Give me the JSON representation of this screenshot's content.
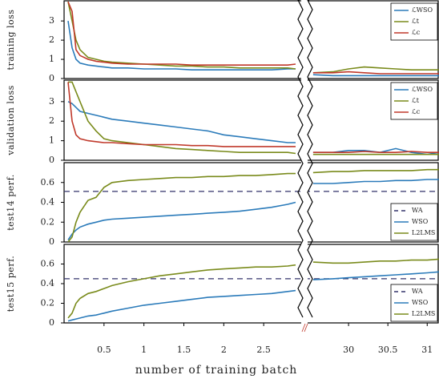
{
  "chart_data": {
    "type": "line-panels",
    "xlabel": "number of training batch",
    "x_segments": [
      {
        "xlim": [
          0,
          2.95
        ],
        "xticks": [
          0.5,
          1,
          1.5,
          2,
          2.5
        ]
      },
      {
        "xlim": [
          29.5,
          31.15
        ],
        "xticks": [
          30,
          30.5,
          31
        ]
      }
    ],
    "x": [
      0.05,
      0.1,
      0.15,
      0.2,
      0.3,
      0.4,
      0.5,
      0.6,
      0.8,
      1.0,
      1.2,
      1.4,
      1.6,
      1.8,
      2.0,
      2.2,
      2.4,
      2.6,
      2.8,
      2.9,
      29.55,
      29.8,
      30.0,
      30.2,
      30.4,
      30.6,
      30.8,
      31.0,
      31.15
    ],
    "panels": [
      {
        "ylabel": "training loss",
        "ylim": [
          0,
          4.05
        ],
        "yticks": [
          0,
          1,
          2,
          3
        ],
        "legend": "upper right",
        "series": [
          {
            "name": "ℒWSO",
            "color": "#2b7bba",
            "values": [
              3.0,
              1.6,
              1.0,
              0.8,
              0.7,
              0.65,
              0.6,
              0.55,
              0.55,
              0.5,
              0.5,
              0.5,
              0.45,
              0.45,
              0.45,
              0.45,
              0.45,
              0.45,
              0.5,
              0.5,
              0.2,
              0.15,
              0.15,
              0.15,
              0.15,
              0.15,
              0.15,
              0.15,
              0.15
            ]
          },
          {
            "name": "ℒt",
            "color": "#7a8b1c",
            "values": [
              4.0,
              3.0,
              2.0,
              1.5,
              1.1,
              1.0,
              0.9,
              0.85,
              0.8,
              0.75,
              0.7,
              0.65,
              0.65,
              0.6,
              0.6,
              0.55,
              0.55,
              0.55,
              0.55,
              0.5,
              0.3,
              0.35,
              0.5,
              0.6,
              0.55,
              0.5,
              0.45,
              0.45,
              0.45
            ]
          },
          {
            "name": "ℒc",
            "color": "#c0392b",
            "values": [
              4.0,
              3.5,
              1.5,
              1.2,
              1.0,
              0.9,
              0.85,
              0.8,
              0.75,
              0.75,
              0.75,
              0.75,
              0.7,
              0.7,
              0.7,
              0.7,
              0.7,
              0.7,
              0.7,
              0.75,
              0.3,
              0.3,
              0.35,
              0.3,
              0.25,
              0.25,
              0.25,
              0.25,
              0.25
            ]
          }
        ]
      },
      {
        "ylabel": "validation loss",
        "ylim": [
          0,
          4.1
        ],
        "yticks": [
          0,
          1,
          2,
          3
        ],
        "legend": "upper right",
        "series": [
          {
            "name": "ℒWSO",
            "color": "#2b7bba",
            "values": [
              3.0,
              2.9,
              2.7,
              2.5,
              2.4,
              2.3,
              2.2,
              2.1,
              2.0,
              1.9,
              1.8,
              1.7,
              1.6,
              1.5,
              1.3,
              1.2,
              1.1,
              1.0,
              0.9,
              0.9,
              0.4,
              0.4,
              0.5,
              0.5,
              0.4,
              0.6,
              0.4,
              0.3,
              0.4
            ]
          },
          {
            "name": "ℒt",
            "color": "#7a8b1c",
            "values": [
              4.0,
              4.0,
              3.5,
              3.0,
              2.0,
              1.5,
              1.1,
              1.0,
              0.9,
              0.8,
              0.7,
              0.6,
              0.55,
              0.5,
              0.45,
              0.4,
              0.4,
              0.4,
              0.4,
              0.35,
              0.3,
              0.3,
              0.3,
              0.3,
              0.3,
              0.3,
              0.3,
              0.3,
              0.3
            ]
          },
          {
            "name": "ℒc",
            "color": "#c0392b",
            "values": [
              4.0,
              2.0,
              1.3,
              1.1,
              1.0,
              0.95,
              0.9,
              0.9,
              0.85,
              0.8,
              0.8,
              0.8,
              0.75,
              0.75,
              0.7,
              0.7,
              0.7,
              0.7,
              0.7,
              0.7,
              0.4,
              0.4,
              0.4,
              0.45,
              0.4,
              0.4,
              0.45,
              0.4,
              0.4
            ]
          }
        ]
      },
      {
        "ylabel": "test14 perf.",
        "ylim": [
          0,
          0.8
        ],
        "yticks": [
          0,
          0.2,
          0.4,
          0.6
        ],
        "legend": "lower right",
        "reference_lines": [
          {
            "name": "WA",
            "value": 0.51,
            "color": "#33336b"
          }
        ],
        "series": [
          {
            "name": "WSO",
            "color": "#2b7bba",
            "values": [
              0.02,
              0.08,
              0.12,
              0.15,
              0.18,
              0.2,
              0.22,
              0.23,
              0.24,
              0.25,
              0.26,
              0.27,
              0.28,
              0.29,
              0.3,
              0.31,
              0.33,
              0.35,
              0.38,
              0.4,
              0.59,
              0.59,
              0.6,
              0.61,
              0.61,
              0.62,
              0.62,
              0.63,
              0.63
            ]
          },
          {
            "name": "L2LMS",
            "color": "#7a8b1c",
            "values": [
              0.0,
              0.05,
              0.2,
              0.3,
              0.42,
              0.45,
              0.55,
              0.6,
              0.62,
              0.63,
              0.64,
              0.65,
              0.65,
              0.66,
              0.66,
              0.67,
              0.67,
              0.68,
              0.69,
              0.69,
              0.7,
              0.71,
              0.71,
              0.72,
              0.72,
              0.72,
              0.72,
              0.73,
              0.73
            ]
          }
        ]
      },
      {
        "ylabel": "test15 perf.",
        "ylim": [
          0,
          0.8
        ],
        "yticks": [
          0,
          0.2,
          0.4,
          0.6
        ],
        "legend": "lower right",
        "reference_lines": [
          {
            "name": "WA",
            "value": 0.45,
            "color": "#33336b"
          }
        ],
        "series": [
          {
            "name": "WSO",
            "color": "#2b7bba",
            "values": [
              0.02,
              0.03,
              0.04,
              0.05,
              0.07,
              0.08,
              0.1,
              0.12,
              0.15,
              0.18,
              0.2,
              0.22,
              0.24,
              0.26,
              0.27,
              0.28,
              0.29,
              0.3,
              0.32,
              0.33,
              0.44,
              0.45,
              0.46,
              0.47,
              0.48,
              0.49,
              0.5,
              0.51,
              0.52
            ]
          },
          {
            "name": "L2LMS",
            "color": "#7a8b1c",
            "values": [
              0.05,
              0.1,
              0.2,
              0.25,
              0.3,
              0.32,
              0.35,
              0.38,
              0.42,
              0.45,
              0.48,
              0.5,
              0.52,
              0.54,
              0.55,
              0.56,
              0.57,
              0.57,
              0.58,
              0.59,
              0.62,
              0.61,
              0.61,
              0.62,
              0.63,
              0.63,
              0.64,
              0.64,
              0.65
            ]
          }
        ]
      }
    ]
  }
}
